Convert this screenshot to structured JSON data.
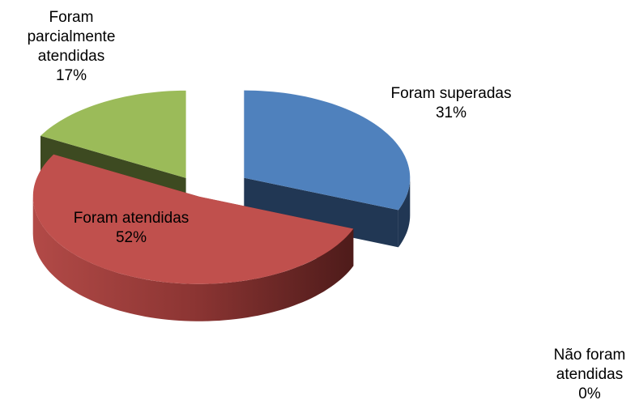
{
  "chart_data": {
    "type": "pie",
    "categories": [
      "Foram superadas",
      "Não foram atendidas",
      "Foram atendidas",
      "Foram parcialmente atendidas"
    ],
    "values": [
      31,
      0,
      52,
      17
    ],
    "value_labels": [
      "31%",
      "0%",
      "52%",
      "17%"
    ],
    "colors": [
      "#4f81bd",
      "#8064a2",
      "#c0504d",
      "#9bbb59"
    ]
  }
}
